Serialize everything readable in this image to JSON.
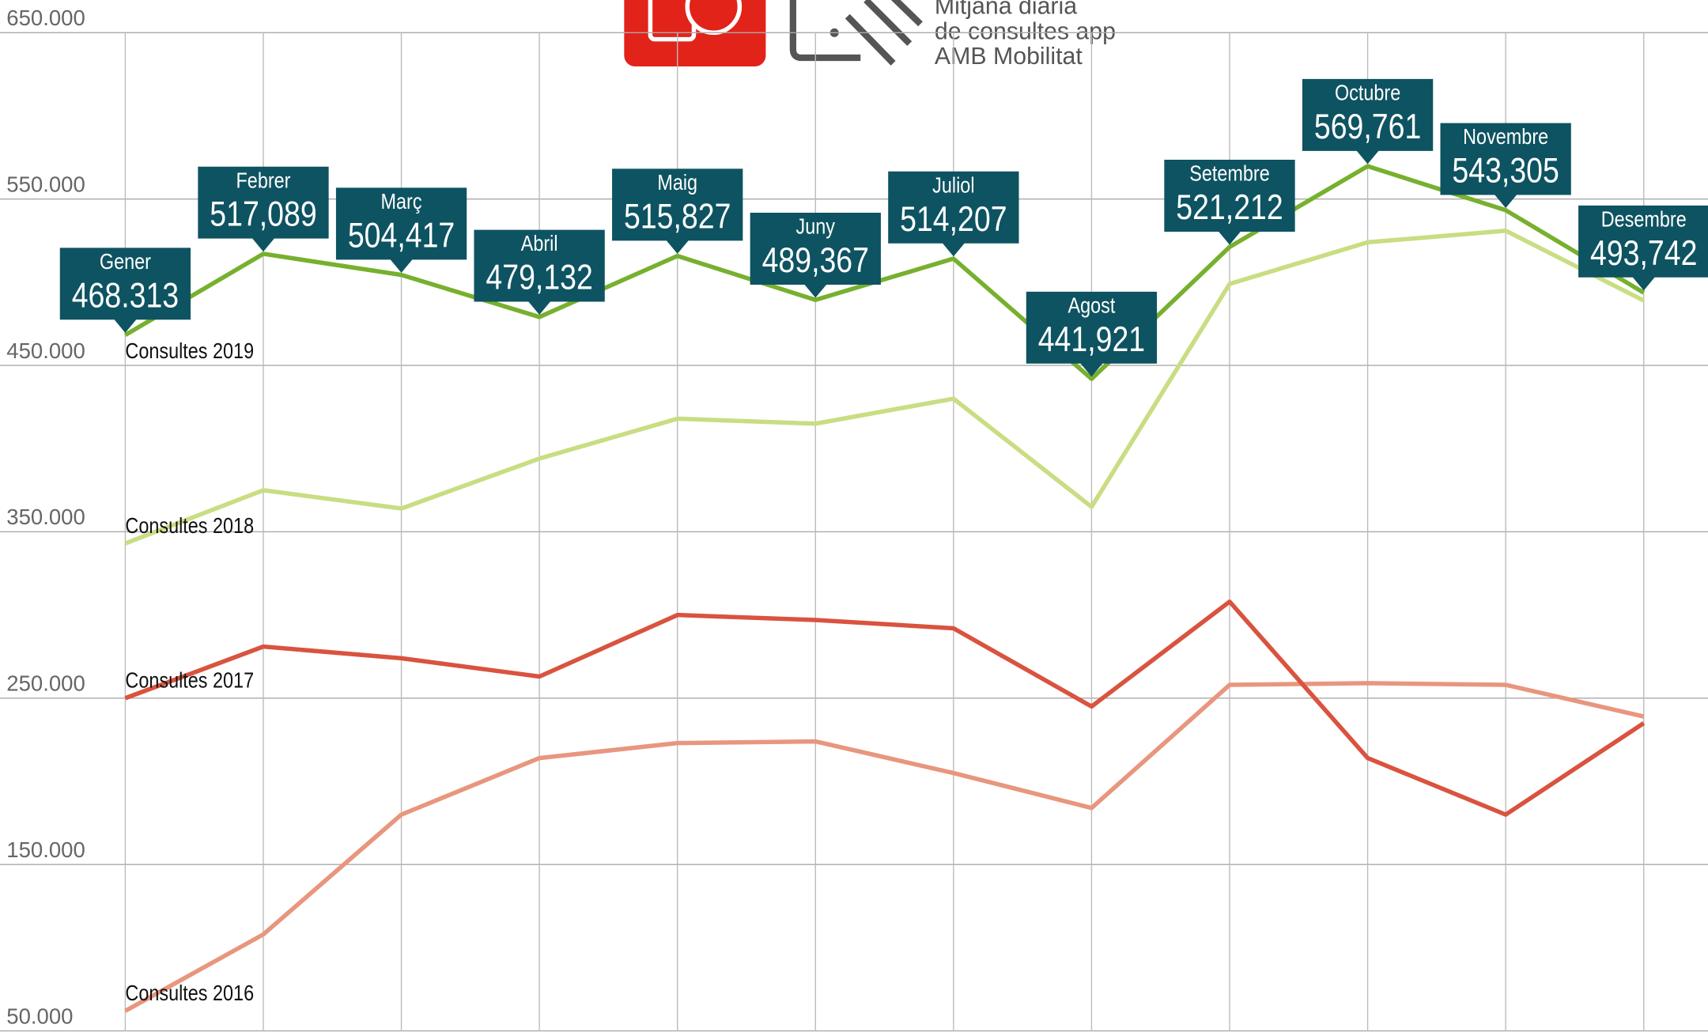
{
  "chart_data": {
    "type": "line",
    "title_lines": [
      "Mitjana diaria",
      "de consultes app",
      "AMB Mobilitat"
    ],
    "categories": [
      "Gener",
      "Febrer",
      "Març",
      "Abril",
      "Maig",
      "Juny",
      "Juliol",
      "Agost",
      "Setembre",
      "Octubre",
      "Novembre",
      "Desembre"
    ],
    "series": [
      {
        "name": "Consultes 2019",
        "color": "#77b02e",
        "values": [
          468313,
          517089,
          504417,
          479132,
          515827,
          489367,
          514207,
          441921,
          521212,
          569761,
          543305,
          493742
        ],
        "value_labels": [
          "468.313",
          "517,089",
          "504,417",
          "479,132",
          "515,827",
          "489,367",
          "514,207",
          "441,921",
          "521,212",
          "569,761",
          "543,305",
          "493,742"
        ]
      },
      {
        "name": "Consultes 2018",
        "color": "#c9dd82",
        "values": [
          343000,
          375000,
          364000,
          394000,
          418000,
          415000,
          430000,
          365000,
          499000,
          524000,
          531000,
          489000
        ]
      },
      {
        "name": "Consultes 2017",
        "color": "#d9533f",
        "values": [
          250000,
          281000,
          274000,
          263000,
          300000,
          297000,
          292000,
          245000,
          308000,
          214000,
          180000,
          235000
        ]
      },
      {
        "name": "Consultes 2016",
        "color": "#e8967e",
        "values": [
          62000,
          108000,
          180000,
          214000,
          223000,
          224000,
          205000,
          184000,
          258000,
          259000,
          258000,
          239000
        ]
      }
    ],
    "ylim": [
      50000,
      650000
    ],
    "yticks": [
      {
        "value": 50000,
        "label": "50.000"
      },
      {
        "value": 150000,
        "label": "150.000"
      },
      {
        "value": 250000,
        "label": "250.000"
      },
      {
        "value": 350000,
        "label": "350.000"
      },
      {
        "value": 450000,
        "label": "450.000"
      },
      {
        "value": 550000,
        "label": "550.000"
      },
      {
        "value": 650000,
        "label": "650.000"
      }
    ],
    "grid": true,
    "callout_color": "#0e5361"
  }
}
